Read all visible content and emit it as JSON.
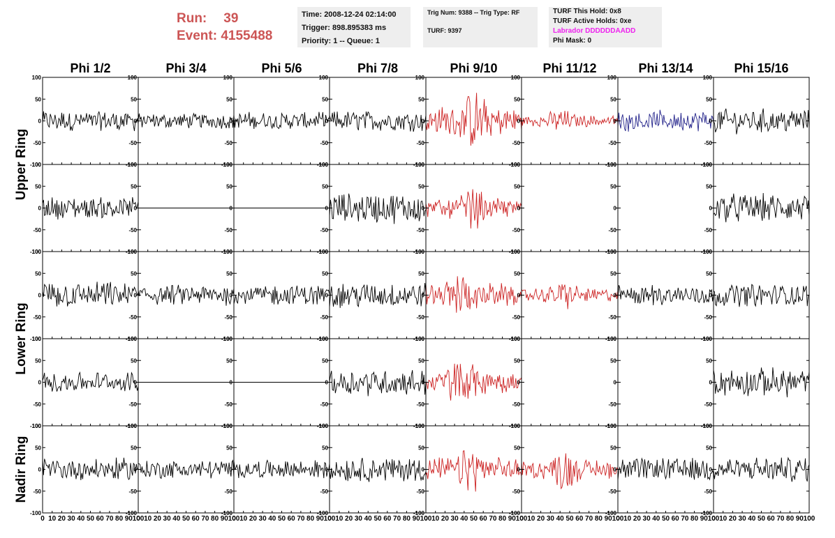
{
  "header": {
    "run_label": "Run:",
    "run_value": "39",
    "event_label": "Event:",
    "event_value": "4155488"
  },
  "info": {
    "time": "Time: 2008-12-24 02:14:00",
    "trigger": "Trigger: 898.895383 ms",
    "priority": "Priority: 1 -- Queue: 1",
    "trig_num": "Trig Num: 9388 -- Trig Type: RF",
    "turf": "TURF: 9397",
    "turf_hold": "TURF This Hold: 0x8",
    "turf_active": "TURF Active Holds: 0xe",
    "labrador": "Labrador DDDDDDAADD",
    "phi_mask": "Phi Mask: 0"
  },
  "colors": {
    "normal": "#000000",
    "triggered": "#cc2222",
    "hold": "#22228a",
    "labrador": "#ee22ee",
    "run_text": "#cc5555"
  },
  "chart_data": {
    "type": "line",
    "columns": [
      "Phi 1/2",
      "Phi 3/4",
      "Phi 5/6",
      "Phi 7/8",
      "Phi 9/10",
      "Phi 11/12",
      "Phi 13/14",
      "Phi 15/16"
    ],
    "row_groups": [
      {
        "label": "Upper Ring",
        "rows": [
          0,
          1
        ]
      },
      {
        "label": "Lower Ring",
        "rows": [
          2,
          3
        ]
      },
      {
        "label": "Nadir Ring",
        "rows": [
          4
        ]
      }
    ],
    "xlim": [
      0,
      100
    ],
    "ylim": [
      -100,
      100
    ],
    "x_ticks": [
      "0",
      "10",
      "20",
      "30",
      "40",
      "50",
      "60",
      "70",
      "80",
      "90",
      "100"
    ],
    "y_ticks": [
      "100",
      "50",
      "0",
      "-50",
      "-100"
    ],
    "panels": [
      [
        {
          "c": "normal",
          "a": 20
        },
        {
          "c": "normal",
          "a": 15
        },
        {
          "c": "normal",
          "a": 17
        },
        {
          "c": "normal",
          "a": 20
        },
        {
          "c": "triggered",
          "a": 45
        },
        {
          "c": "triggered",
          "a": 18
        },
        {
          "c": "hold",
          "a": 20
        },
        {
          "c": "normal",
          "a": 24
        }
      ],
      [
        {
          "c": "normal",
          "a": 22
        },
        {
          "c": "normal",
          "a": 0
        },
        {
          "c": "normal",
          "a": 0
        },
        {
          "c": "normal",
          "a": 30
        },
        {
          "c": "triggered",
          "a": 30
        },
        {
          "c": "normal",
          "a": -1
        },
        {
          "c": "normal",
          "a": -1
        },
        {
          "c": "normal",
          "a": 28
        }
      ],
      [
        {
          "c": "normal",
          "a": 26
        },
        {
          "c": "normal",
          "a": 20
        },
        {
          "c": "normal",
          "a": 20
        },
        {
          "c": "normal",
          "a": 25
        },
        {
          "c": "triggered",
          "a": 35
        },
        {
          "c": "triggered",
          "a": 22
        },
        {
          "c": "normal",
          "a": 20
        },
        {
          "c": "normal",
          "a": 22
        }
      ],
      [
        {
          "c": "normal",
          "a": 20
        },
        {
          "c": "normal",
          "a": 0
        },
        {
          "c": "normal",
          "a": 0
        },
        {
          "c": "normal",
          "a": 26
        },
        {
          "c": "triggered",
          "a": 40
        },
        {
          "c": "normal",
          "a": -1
        },
        {
          "c": "normal",
          "a": -1
        },
        {
          "c": "normal",
          "a": 28
        }
      ],
      [
        {
          "c": "normal",
          "a": 22
        },
        {
          "c": "normal",
          "a": 18
        },
        {
          "c": "normal",
          "a": 18
        },
        {
          "c": "normal",
          "a": 24
        },
        {
          "c": "triggered",
          "a": 35
        },
        {
          "c": "triggered",
          "a": 30
        },
        {
          "c": "normal",
          "a": 22
        },
        {
          "c": "normal",
          "a": 24
        }
      ]
    ]
  }
}
